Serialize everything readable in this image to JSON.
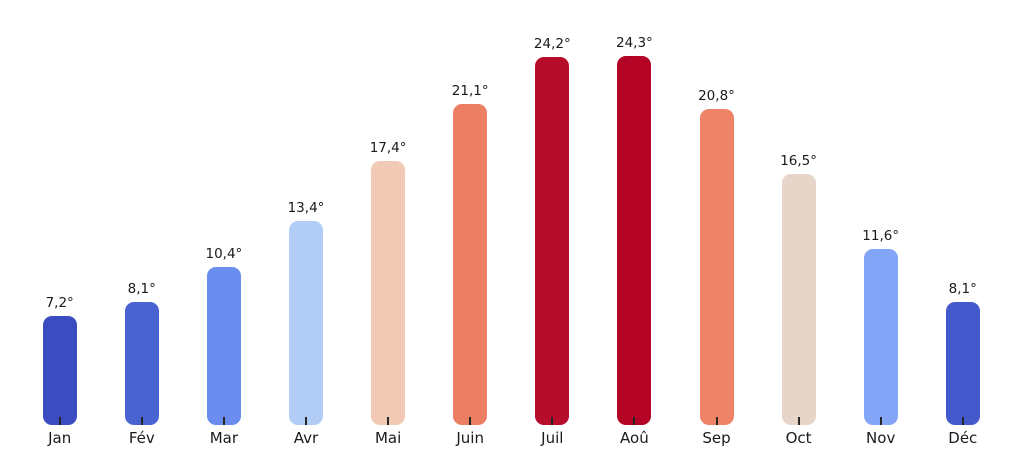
{
  "chart_data": {
    "type": "bar",
    "title": "",
    "xlabel": "",
    "ylabel": "",
    "legend_position": "none",
    "grid": false,
    "axes_visible": false,
    "background_color": "#ffffff",
    "text_color": "#1a1a1a",
    "tick_color": "#262626",
    "unit_suffix": "°",
    "ylim": [
      0,
      28
    ],
    "categories": [
      "Jan",
      "Fév",
      "Mar",
      "Avr",
      "Mai",
      "Juin",
      "Juil",
      "Aoû",
      "Sep",
      "Oct",
      "Nov",
      "Déc"
    ],
    "values": [
      7.2,
      8.1,
      10.4,
      13.4,
      17.4,
      21.1,
      24.2,
      24.3,
      20.8,
      16.5,
      11.6,
      8.1
    ],
    "value_labels": [
      "7,2°",
      "8,1°",
      "10,4°",
      "13,4°",
      "17,4°",
      "21,1°",
      "24,2°",
      "24,3°",
      "20,8°",
      "16,5°",
      "11,6°",
      "8,1°"
    ],
    "bar_colors": [
      "#3b4cc0",
      "#4a63d3",
      "#6b8df0",
      "#b1cdf6",
      "#f0cab4",
      "#ec7f63",
      "#b60d2a",
      "#b40426",
      "#ee8367",
      "#e6d5c8",
      "#82a5f8",
      "#4459cb"
    ]
  }
}
